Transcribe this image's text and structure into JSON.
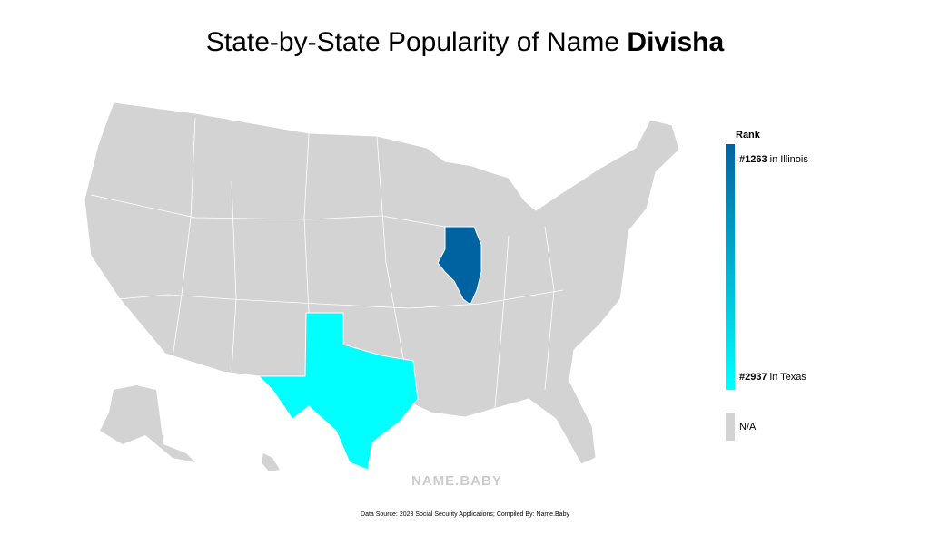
{
  "title": "State-by-State Popularity of Name",
  "name": "Divisha",
  "legend": {
    "title": "Rank",
    "entries": [
      {
        "rank": {
          "value": 1263,
          "label": "#1263"
        },
        "state": "in Illinois",
        "color": "#0063a1"
      },
      {
        "rank": {
          "value": 2937,
          "label": "#2937"
        },
        "state": "in Texas",
        "color": "#00ffff"
      }
    ],
    "na": "N/A"
  },
  "watermark": "NAME.BABY",
  "source": "Data Source: 2023 Social Security Applications; Compiled By: Name.Baby"
}
